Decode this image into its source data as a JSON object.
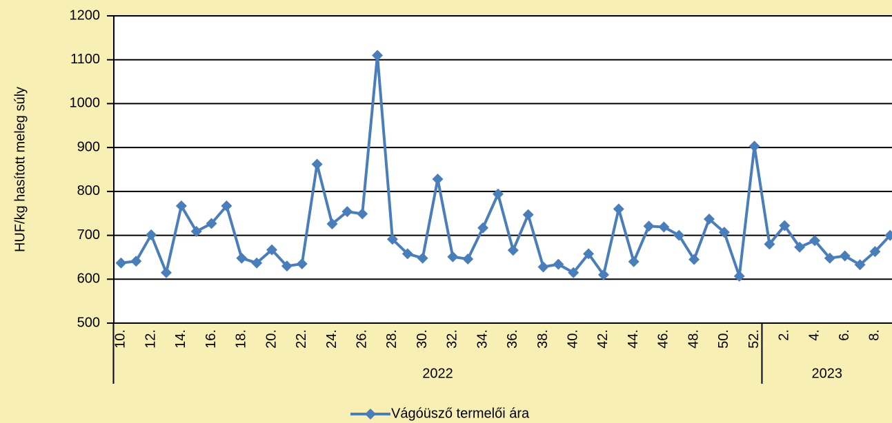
{
  "chart_data": {
    "type": "line",
    "y_label": "HUF/kg hasított meleg súly",
    "category_groups": [
      {
        "name": "2022",
        "categories": [
          "10.",
          null,
          "12.",
          null,
          "14.",
          null,
          "16.",
          null,
          "18.",
          null,
          "20.",
          null,
          "22.",
          null,
          "24.",
          null,
          "26.",
          null,
          "28.",
          null,
          "30.",
          null,
          "32.",
          null,
          "34.",
          null,
          "36.",
          null,
          "38.",
          null,
          "40.",
          null,
          "42.",
          null,
          "44.",
          null,
          "46.",
          null,
          "48.",
          null,
          "50.",
          null,
          "52."
        ]
      },
      {
        "name": "2023",
        "categories": [
          null,
          "2.",
          null,
          "4.",
          null,
          "6.",
          null,
          "8.",
          null
        ]
      }
    ],
    "series": [
      {
        "name": "Vágóüsző termelői ára",
        "color": "#4a7ebb",
        "values": [
          637,
          641,
          701,
          615,
          767,
          709,
          727,
          767,
          648,
          637,
          667,
          630,
          635,
          862,
          726,
          754,
          749,
          1110,
          691,
          658,
          648,
          828,
          651,
          646,
          717,
          794,
          666,
          747,
          628,
          634,
          615,
          658,
          610,
          760,
          640,
          721,
          719,
          700,
          645,
          737,
          707,
          607,
          903,
          680,
          722,
          673,
          688,
          648,
          653,
          633,
          663,
          700
        ]
      }
    ],
    "ylim": [
      500,
      1200
    ],
    "yticks": [
      500,
      600,
      700,
      800,
      900,
      1000,
      1100,
      1200
    ],
    "grid": true,
    "legend": "bottom"
  }
}
